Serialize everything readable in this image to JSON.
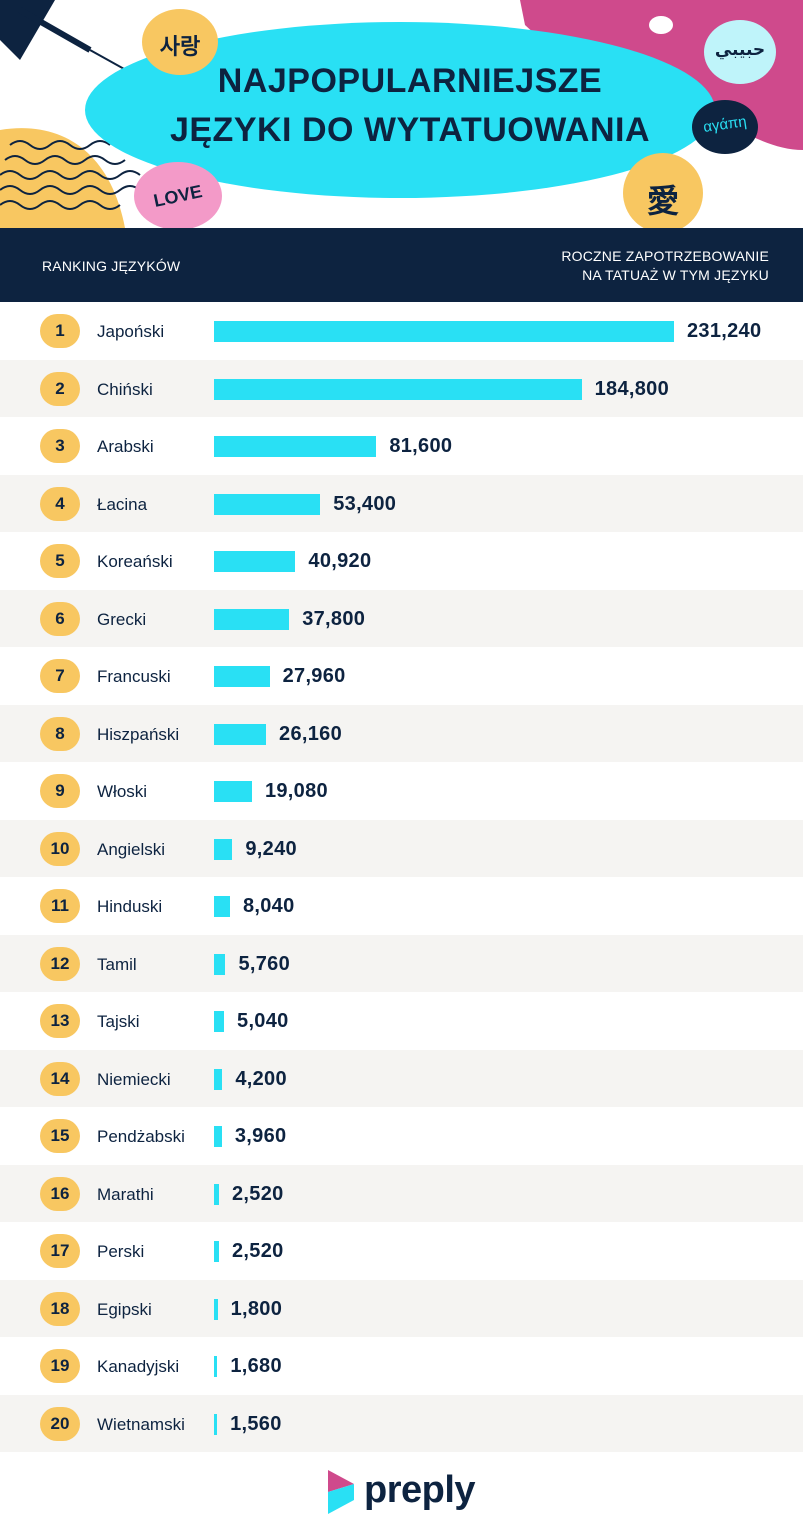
{
  "title_line1": "NAJPOPULARNIEJSZE",
  "title_line2": "JĘZYKI DO WYTATUOWANIA",
  "decor_words": {
    "korean": "사랑",
    "arabic": "حبيبي",
    "greek": "αγάπη",
    "love": "LOVE",
    "chinese": "愛"
  },
  "header": {
    "left_label": "RANKING JĘZYKÓW",
    "right_line1": "ROCZNE ZAPOTRZEBOWANIE",
    "right_line2": "NA TATUAŻ W TYM JĘZYKU"
  },
  "colors": {
    "bar": "#29e0f4",
    "navy": "#0d2340",
    "rank_badge": "#f8c761",
    "pink": "#cf4a8c",
    "light_pink": "#f39ac8"
  },
  "chart_data": {
    "type": "bar",
    "orientation": "horizontal",
    "categories": [
      "Japoński",
      "Chiński",
      "Arabski",
      "Łacina",
      "Koreański",
      "Grecki",
      "Francuski",
      "Hiszpański",
      "Włoski",
      "Angielski",
      "Hinduski",
      "Tamil",
      "Tajski",
      "Niemiecki",
      "Pendżabski",
      "Marathi",
      "Perski",
      "Egipski",
      "Kanadyjski",
      "Wietnamski"
    ],
    "ranks": [
      "1",
      "2",
      "3",
      "4",
      "5",
      "6",
      "7",
      "8",
      "9",
      "10",
      "11",
      "12",
      "13",
      "14",
      "15",
      "16",
      "17",
      "18",
      "19",
      "20"
    ],
    "values": [
      231240,
      184800,
      81600,
      53400,
      40920,
      37800,
      27960,
      26160,
      19080,
      9240,
      8040,
      5760,
      5040,
      4200,
      3960,
      2520,
      2520,
      1800,
      1680,
      1560
    ],
    "value_labels": [
      "231,240",
      "184,800",
      "81,600",
      "53,400",
      "40,920",
      "37,800",
      "27,960",
      "26,160",
      "19,080",
      "9,240",
      "8,040",
      "5,760",
      "5,040",
      "4,200",
      "3,960",
      "2,520",
      "2,520",
      "1,800",
      "1,680",
      "1,560"
    ],
    "xlim": [
      0,
      231240
    ]
  },
  "brand": "preply"
}
